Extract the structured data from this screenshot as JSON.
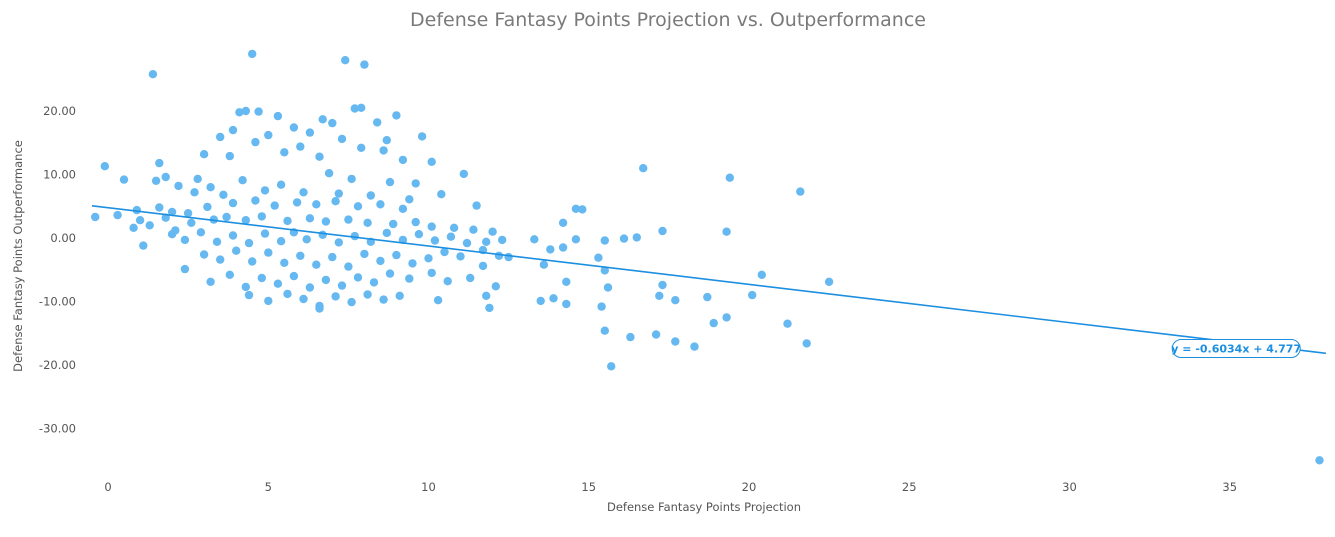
{
  "chart_data": {
    "type": "scatter",
    "title": "Defense Fantasy Points Projection vs. Outperformance",
    "xlabel": "Defense Fantasy Points Projection",
    "ylabel": "Defense Fantasy Points Outperformance",
    "xlim": [
      -0.5,
      38
    ],
    "ylim": [
      -38,
      30
    ],
    "x_ticks": [
      0,
      5,
      10,
      15,
      20,
      25,
      30,
      35
    ],
    "x_tick_labels": [
      "0",
      "5",
      "10",
      "15",
      "20",
      "25",
      "30",
      "35"
    ],
    "y_ticks": [
      20,
      10,
      0,
      -10,
      -20,
      -30
    ],
    "y_tick_labels": [
      "20.00",
      "10.00",
      "0.00",
      "-10.00",
      "-20.00",
      "-30.00"
    ],
    "grid": false,
    "legend": "none",
    "colors": {
      "points": "#66b8f0",
      "trendline": "#1d8fe0",
      "title": "#7a7a7a",
      "axis_text": "#555555"
    },
    "trendline": {
      "slope": -0.6034,
      "intercept": 4.777,
      "x_range": [
        -0.5,
        38
      ],
      "label": "y = -0.6034x + 4.777"
    },
    "series": [
      {
        "points": [
          [
            4.5,
            29.0
          ],
          [
            7.4,
            28.0
          ],
          [
            8.0,
            27.3
          ],
          [
            1.4,
            25.8
          ],
          [
            7.7,
            20.4
          ],
          [
            7.9,
            20.5
          ],
          [
            4.1,
            19.8
          ],
          [
            4.3,
            20.0
          ],
          [
            4.7,
            19.9
          ],
          [
            5.3,
            19.2
          ],
          [
            6.7,
            18.7
          ],
          [
            7.0,
            18.1
          ],
          [
            8.4,
            18.2
          ],
          [
            9.0,
            19.3
          ],
          [
            3.9,
            17.0
          ],
          [
            5.0,
            16.2
          ],
          [
            5.8,
            17.4
          ],
          [
            6.3,
            16.6
          ],
          [
            7.3,
            15.6
          ],
          [
            8.7,
            15.4
          ],
          [
            9.8,
            16.0
          ],
          [
            3.5,
            15.9
          ],
          [
            4.6,
            15.1
          ],
          [
            6.0,
            14.4
          ],
          [
            7.9,
            14.2
          ],
          [
            8.6,
            13.8
          ],
          [
            3.0,
            13.2
          ],
          [
            3.8,
            12.9
          ],
          [
            5.5,
            13.5
          ],
          [
            6.6,
            12.8
          ],
          [
            9.2,
            12.3
          ],
          [
            10.1,
            12.0
          ],
          [
            1.6,
            11.8
          ],
          [
            -0.1,
            11.3
          ],
          [
            16.7,
            11.0
          ],
          [
            0.5,
            9.2
          ],
          [
            1.5,
            9.0
          ],
          [
            1.8,
            9.6
          ],
          [
            2.8,
            9.3
          ],
          [
            11.1,
            10.1
          ],
          [
            19.4,
            9.5
          ],
          [
            21.6,
            7.3
          ],
          [
            2.2,
            8.2
          ],
          [
            3.2,
            8.0
          ],
          [
            4.2,
            9.1
          ],
          [
            5.4,
            8.4
          ],
          [
            6.9,
            10.2
          ],
          [
            7.6,
            9.3
          ],
          [
            8.8,
            8.8
          ],
          [
            9.6,
            8.6
          ],
          [
            10.4,
            6.9
          ],
          [
            2.7,
            7.2
          ],
          [
            3.6,
            6.8
          ],
          [
            4.9,
            7.5
          ],
          [
            6.1,
            7.2
          ],
          [
            7.2,
            7.0
          ],
          [
            8.2,
            6.7
          ],
          [
            9.4,
            6.1
          ],
          [
            11.5,
            5.1
          ],
          [
            14.6,
            4.6
          ],
          [
            14.8,
            4.5
          ],
          [
            0.9,
            4.4
          ],
          [
            1.6,
            4.8
          ],
          [
            2.0,
            4.1
          ],
          [
            -0.4,
            3.3
          ],
          [
            0.3,
            3.6
          ],
          [
            1.0,
            2.8
          ],
          [
            1.8,
            3.2
          ],
          [
            2.5,
            3.9
          ],
          [
            3.1,
            4.9
          ],
          [
            3.9,
            5.5
          ],
          [
            4.6,
            5.9
          ],
          [
            5.2,
            5.1
          ],
          [
            5.9,
            5.6
          ],
          [
            6.5,
            5.3
          ],
          [
            7.1,
            5.8
          ],
          [
            7.8,
            5.0
          ],
          [
            8.5,
            5.3
          ],
          [
            9.2,
            4.6
          ],
          [
            0.8,
            1.6
          ],
          [
            1.3,
            2.0
          ],
          [
            2.1,
            1.2
          ],
          [
            2.6,
            2.4
          ],
          [
            3.3,
            2.9
          ],
          [
            3.7,
            3.3
          ],
          [
            4.3,
            2.8
          ],
          [
            4.8,
            3.4
          ],
          [
            5.6,
            2.7
          ],
          [
            6.3,
            3.1
          ],
          [
            6.8,
            2.6
          ],
          [
            7.5,
            2.9
          ],
          [
            8.1,
            2.4
          ],
          [
            8.9,
            2.2
          ],
          [
            9.6,
            2.5
          ],
          [
            10.1,
            1.8
          ],
          [
            10.8,
            1.6
          ],
          [
            11.4,
            1.3
          ],
          [
            12.0,
            1.0
          ],
          [
            14.2,
            2.4
          ],
          [
            17.3,
            1.1
          ],
          [
            19.3,
            1.0
          ],
          [
            1.1,
            -1.2
          ],
          [
            2.0,
            0.6
          ],
          [
            2.4,
            -0.3
          ],
          [
            2.9,
            0.9
          ],
          [
            3.4,
            -0.6
          ],
          [
            3.9,
            0.4
          ],
          [
            4.4,
            -0.8
          ],
          [
            4.9,
            0.7
          ],
          [
            5.4,
            -0.5
          ],
          [
            5.8,
            0.9
          ],
          [
            6.2,
            -0.2
          ],
          [
            6.7,
            0.5
          ],
          [
            7.2,
            -0.7
          ],
          [
            7.7,
            0.3
          ],
          [
            8.2,
            -0.6
          ],
          [
            8.7,
            0.8
          ],
          [
            9.2,
            -0.3
          ],
          [
            9.7,
            0.6
          ],
          [
            10.2,
            -0.4
          ],
          [
            10.7,
            0.2
          ],
          [
            11.2,
            -0.8
          ],
          [
            11.8,
            -0.6
          ],
          [
            12.3,
            -0.3
          ],
          [
            13.3,
            -0.2
          ],
          [
            13.8,
            -1.8
          ],
          [
            14.2,
            -1.5
          ],
          [
            14.6,
            -0.2
          ],
          [
            15.5,
            -0.4
          ],
          [
            16.1,
            -0.1
          ],
          [
            16.5,
            0.1
          ],
          [
            2.4,
            -4.9
          ],
          [
            3.0,
            -2.6
          ],
          [
            3.5,
            -3.4
          ],
          [
            4.0,
            -2.0
          ],
          [
            4.5,
            -3.7
          ],
          [
            5.0,
            -2.3
          ],
          [
            5.5,
            -3.9
          ],
          [
            6.0,
            -2.8
          ],
          [
            6.5,
            -4.2
          ],
          [
            7.0,
            -3.0
          ],
          [
            7.5,
            -4.5
          ],
          [
            8.0,
            -2.5
          ],
          [
            8.5,
            -3.6
          ],
          [
            9.0,
            -2.7
          ],
          [
            9.5,
            -4.0
          ],
          [
            10.0,
            -3.2
          ],
          [
            10.5,
            -2.2
          ],
          [
            11.0,
            -2.9
          ],
          [
            11.7,
            -1.9
          ],
          [
            12.2,
            -2.8
          ],
          [
            12.5,
            -3.0
          ],
          [
            13.6,
            -4.2
          ],
          [
            15.3,
            -3.1
          ],
          [
            15.5,
            -5.1
          ],
          [
            3.2,
            -6.9
          ],
          [
            3.8,
            -5.8
          ],
          [
            4.3,
            -7.7
          ],
          [
            4.8,
            -6.3
          ],
          [
            5.3,
            -7.2
          ],
          [
            5.8,
            -6.0
          ],
          [
            6.3,
            -7.8
          ],
          [
            6.8,
            -6.6
          ],
          [
            7.3,
            -7.5
          ],
          [
            7.8,
            -6.2
          ],
          [
            8.3,
            -7.0
          ],
          [
            8.8,
            -5.6
          ],
          [
            9.4,
            -6.4
          ],
          [
            10.1,
            -5.5
          ],
          [
            10.6,
            -6.8
          ],
          [
            11.3,
            -6.3
          ],
          [
            11.7,
            -4.4
          ],
          [
            12.1,
            -7.6
          ],
          [
            14.3,
            -6.9
          ],
          [
            15.6,
            -7.8
          ],
          [
            4.4,
            -9.0
          ],
          [
            5.0,
            -9.9
          ],
          [
            5.6,
            -8.8
          ],
          [
            6.1,
            -9.6
          ],
          [
            6.6,
            -10.7
          ],
          [
            7.1,
            -9.2
          ],
          [
            7.6,
            -10.1
          ],
          [
            8.1,
            -8.9
          ],
          [
            8.6,
            -9.7
          ],
          [
            9.1,
            -9.1
          ],
          [
            10.3,
            -9.8
          ],
          [
            11.8,
            -9.1
          ],
          [
            11.9,
            -11.0
          ],
          [
            13.5,
            -9.9
          ],
          [
            13.9,
            -9.5
          ],
          [
            14.3,
            -10.4
          ],
          [
            15.4,
            -10.8
          ],
          [
            17.2,
            -9.1
          ],
          [
            17.7,
            -9.8
          ],
          [
            18.7,
            -9.3
          ],
          [
            20.1,
            -9.0
          ],
          [
            20.4,
            -5.8
          ],
          [
            22.5,
            -6.9
          ],
          [
            17.3,
            -7.4
          ],
          [
            19.3,
            -12.5
          ],
          [
            18.9,
            -13.4
          ],
          [
            21.2,
            -13.5
          ],
          [
            15.5,
            -14.6
          ],
          [
            16.3,
            -15.6
          ],
          [
            17.1,
            -15.2
          ],
          [
            17.7,
            -16.3
          ],
          [
            18.3,
            -17.1
          ],
          [
            21.8,
            -16.6
          ],
          [
            15.7,
            -20.2
          ],
          [
            6.6,
            -11.1
          ],
          [
            37.8,
            -35.0
          ]
        ]
      }
    ]
  }
}
